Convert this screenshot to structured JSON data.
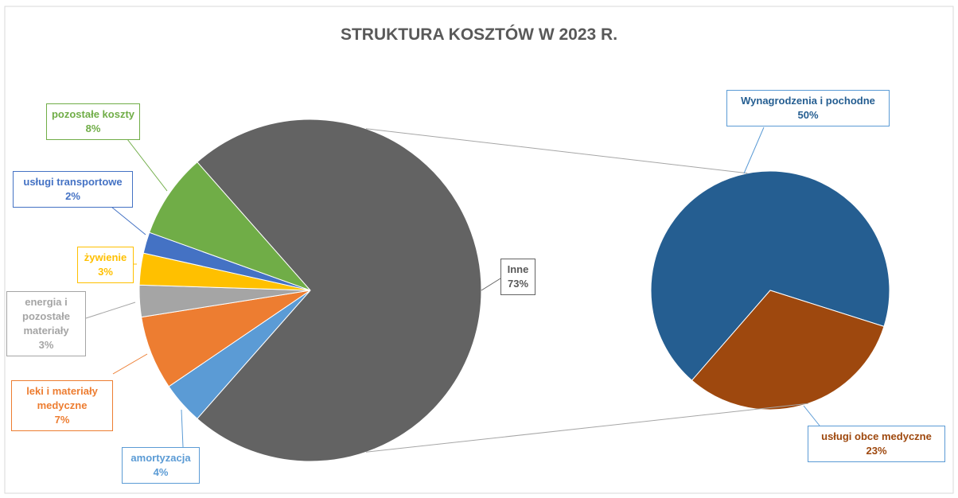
{
  "chart_data": {
    "type": "pie-of-pie",
    "title": "STRUKTURA KOSZTÓW W 2023 R.",
    "categories": [
      "Inne",
      "amortyzacja",
      "leki i materiały medyczne",
      "energia i pozostałe materiały",
      "żywienie",
      "usługi transportowe",
      "pozostałe koszty"
    ],
    "values": [
      73,
      4,
      7,
      3,
      3,
      2,
      8
    ],
    "value_labels": [
      "73%",
      "4%",
      "7%",
      "3%",
      "3%",
      "2%",
      "8%"
    ],
    "colors": [
      "#636363",
      "#5b9bd5",
      "#ed7d31",
      "#a5a5a5",
      "#ffc000",
      "#4472c4",
      "#70ad47"
    ],
    "secondary": {
      "categories": [
        "Wynagrodzenia i pochodne",
        "usługi obce medyczne"
      ],
      "values": [
        50,
        23
      ],
      "value_labels": [
        "50%",
        "23%"
      ],
      "colors": [
        "#255e91",
        "#9e480e"
      ]
    }
  }
}
